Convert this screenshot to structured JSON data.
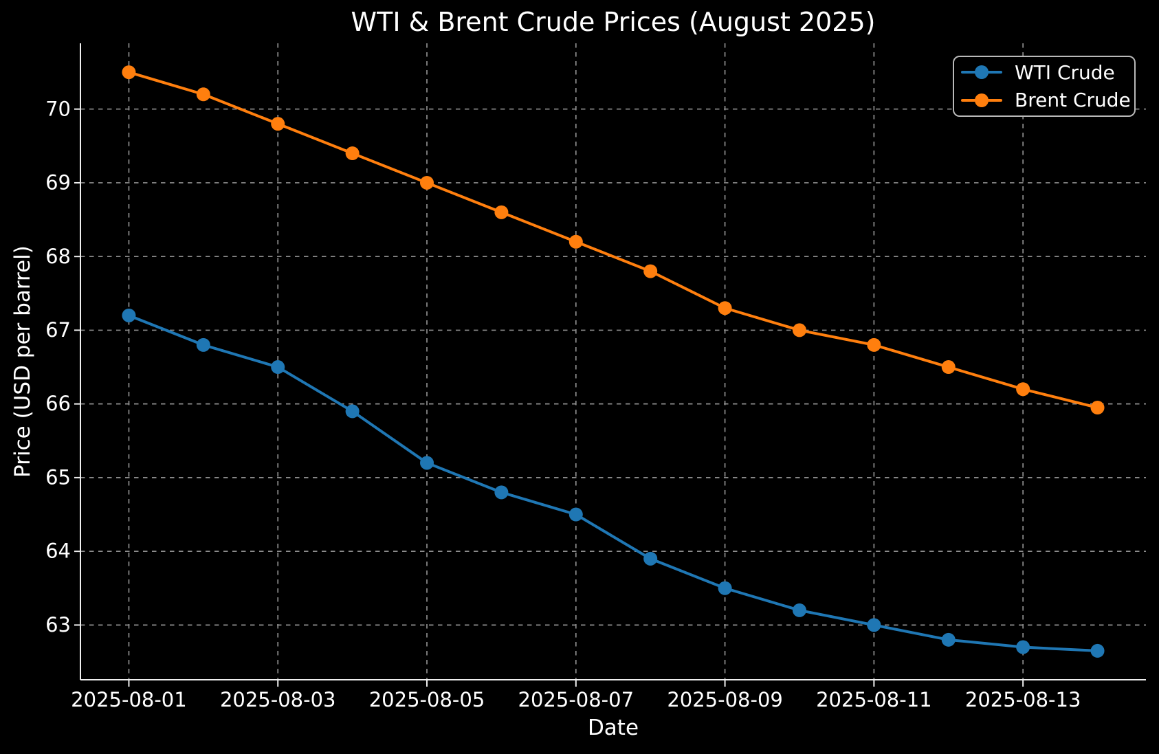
{
  "chart_data": {
    "type": "line",
    "title": "WTI & Brent Crude Prices (August 2025)",
    "xlabel": "Date",
    "ylabel": "Price (USD per barrel)",
    "x": [
      "2025-08-01",
      "2025-08-02",
      "2025-08-03",
      "2025-08-04",
      "2025-08-05",
      "2025-08-06",
      "2025-08-07",
      "2025-08-08",
      "2025-08-09",
      "2025-08-10",
      "2025-08-11",
      "2025-08-12",
      "2025-08-13",
      "2025-08-14"
    ],
    "series": [
      {
        "name": "WTI Crude",
        "color": "#1f77b4",
        "values": [
          67.2,
          66.8,
          66.5,
          65.9,
          65.2,
          64.8,
          64.5,
          63.9,
          63.5,
          63.2,
          63.0,
          62.8,
          62.7,
          62.65
        ]
      },
      {
        "name": "Brent Crude",
        "color": "#ff7f0e",
        "values": [
          70.5,
          70.2,
          69.8,
          69.4,
          69.0,
          68.6,
          68.2,
          67.8,
          67.3,
          67.0,
          66.8,
          66.5,
          66.2,
          65.95
        ]
      }
    ],
    "xtick_labels": [
      "2025-08-01",
      "2025-08-03",
      "2025-08-05",
      "2025-08-07",
      "2025-08-09",
      "2025-08-11",
      "2025-08-13"
    ],
    "xtick_positions": [
      1,
      3,
      5,
      7,
      9,
      11,
      13
    ],
    "yticks": [
      63,
      64,
      65,
      66,
      67,
      68,
      69,
      70
    ],
    "xlim": [
      0.35,
      14.65
    ],
    "ylim": [
      62.2575,
      70.8925
    ],
    "grid": "dashed",
    "legend_position": "upper right",
    "colors": {
      "background": "#000000",
      "text": "#ffffff",
      "grid": "#8f8f8f",
      "spine": "#efefef"
    }
  }
}
